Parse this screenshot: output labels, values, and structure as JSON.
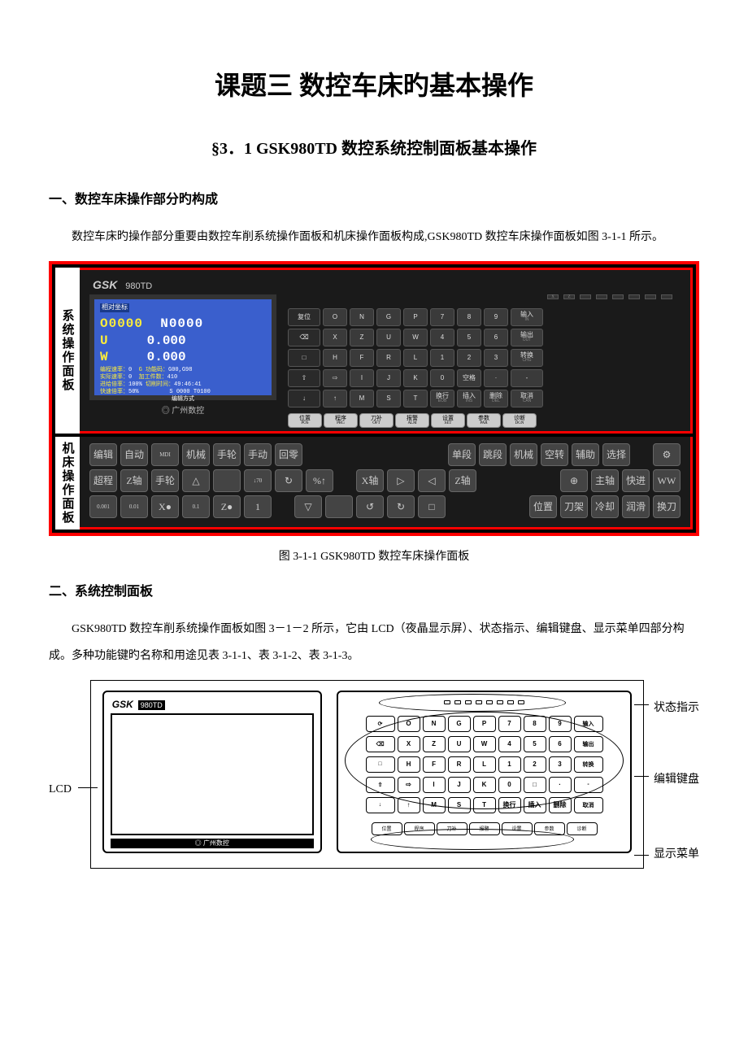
{
  "title": "课题三 数控车床旳基本操作",
  "subtitle": "§3．1 GSK980TD 数控系统控制面板基本操作",
  "section1": {
    "heading": "一、数控车床操作部分旳构成",
    "para": "数控车床旳操作部分重要由数控车削系统操作面板和机床操作面板构成,GSK980TD 数控车床操作面板如图 3-1-1 所示。"
  },
  "fig1": {
    "caption": "图 3-1-1 GSK980TD 数控车床操作面板",
    "sideLabel1": "系统操作面板",
    "sideLabel2": "机床操作面板",
    "brand": "GSK",
    "model": "980TD",
    "lcd": {
      "header": "相对坐标",
      "prog": "O0000",
      "seq": "N0000",
      "u_label": "U",
      "u_val": "0.000",
      "w_label": "W",
      "w_val": "0.000",
      "s1l": "编程速率：",
      "s1r": "G  功能码：",
      "s1lv": "0",
      "s1rv": "G00,G98",
      "s2l": "实际速率：",
      "s2r": "加工件数：",
      "s2lv": "0",
      "s2rv": "410",
      "s3l": "进给倍率：",
      "s3r": "切削时间：",
      "s3lv": "100%",
      "s3rv": "49:46:41",
      "s4l": "快速倍率：",
      "s4r": "",
      "s4lv": "50%",
      "s4rv": "S 0000 T0100",
      "mode": "编辑方式"
    },
    "footer": "广州数控",
    "keypad": {
      "row1": [
        "复位",
        "O",
        "N",
        "G",
        "P",
        "7",
        "8",
        "9",
        "输入 IN"
      ],
      "row2": [
        "⌫",
        "X",
        "Z",
        "U",
        "W",
        "4",
        "5",
        "6",
        "输出 OUT"
      ],
      "row3": [
        "□",
        "H",
        "F",
        "R",
        "L",
        "1",
        "2",
        "3",
        "转换 CHG"
      ],
      "row4": [
        "⇧",
        "⇨",
        "I",
        "J",
        "K",
        "0",
        "空格",
        "·",
        "-"
      ],
      "row5": [
        "↓",
        "↑",
        "M",
        "S",
        "T",
        "换行 EOB",
        "插入 INS",
        "删除 DEL",
        "取消 CAN"
      ],
      "menu": [
        {
          "t": "位置",
          "s": "POS"
        },
        {
          "t": "程序",
          "s": "PRG"
        },
        {
          "t": "刀补",
          "s": "OFT"
        },
        {
          "t": "报警",
          "s": "ALM"
        },
        {
          "t": "设置",
          "s": "SET"
        },
        {
          "t": "参数",
          "s": "PAR"
        },
        {
          "t": "诊断",
          "s": "DGN"
        }
      ]
    },
    "machine": {
      "row1_left": [
        "编辑",
        "自动",
        "MDI",
        "机械",
        "手轮",
        "手动",
        "回零"
      ],
      "row1_right": [
        "单段",
        "跳段",
        "机械",
        "空转",
        "辅助",
        "选择"
      ],
      "row2_left": [
        "超程",
        "Z轴",
        "手轮",
        "△",
        "",
        "↓70",
        "↻",
        "%↑"
      ],
      "row2_mid": [
        "X轴",
        "▷",
        "◁",
        "Z轴"
      ],
      "row2_right": [
        "⊕",
        "主轴",
        "快进",
        "WW"
      ],
      "row3_left": [
        "0.001",
        "0.01",
        "X●",
        "0.1",
        "Z●",
        "1"
      ],
      "row3_mid": [
        "▽",
        "",
        "↺",
        "↻",
        "□"
      ],
      "row3_right": [
        "位置",
        "刀架",
        "冷却",
        "润滑",
        "换刀"
      ]
    }
  },
  "section2": {
    "heading": "二、系统控制面板",
    "para": "GSK980TD 数控车削系统操作面板如图 3－1－2 所示，它由 LCD（夜晶显示屏）、状态指示、编辑键盘、显示菜单四部分构成。多种功能键旳名称和用途见表 3-1-1、表 3-1-2、表 3-1-3。"
  },
  "fig2": {
    "brand": "GSK",
    "model": "980TD",
    "footer": "广州数控",
    "calloutLCD": "LCD",
    "calloutStatus": "状态指示",
    "calloutKeypad": "编辑键盘",
    "calloutMenu": "显示菜单",
    "row1": [
      "⟳",
      "O",
      "N",
      "G",
      "P",
      "7",
      "8",
      "9",
      "输入"
    ],
    "row2": [
      "⌫",
      "X",
      "Z",
      "U",
      "W",
      "4",
      "5",
      "6",
      "输出"
    ],
    "row3": [
      "□",
      "H",
      "F",
      "R",
      "L",
      "1",
      "2",
      "3",
      "转换"
    ],
    "row4": [
      "⇧",
      "⇨",
      "I",
      "J",
      "K",
      "0",
      "□",
      "·",
      "-"
    ],
    "row5": [
      "↓",
      "↑",
      "M",
      "S",
      "T",
      "换行",
      "插入",
      "删除",
      "取消"
    ],
    "menu": [
      "位置",
      "程序",
      "刀补",
      "报警",
      "设置",
      "参数",
      "诊断"
    ]
  },
  "colors": {
    "panel_frame": "#ff0000",
    "panel_bg": "#1a1a1a",
    "lcd_bg": "#3a5fcd",
    "lcd_yellow": "#fded3a",
    "lcd_white": "#ffffff",
    "key_bg": "#3a3a3a",
    "key_border": "#555555",
    "menu_key_bg": "#cccccc"
  }
}
